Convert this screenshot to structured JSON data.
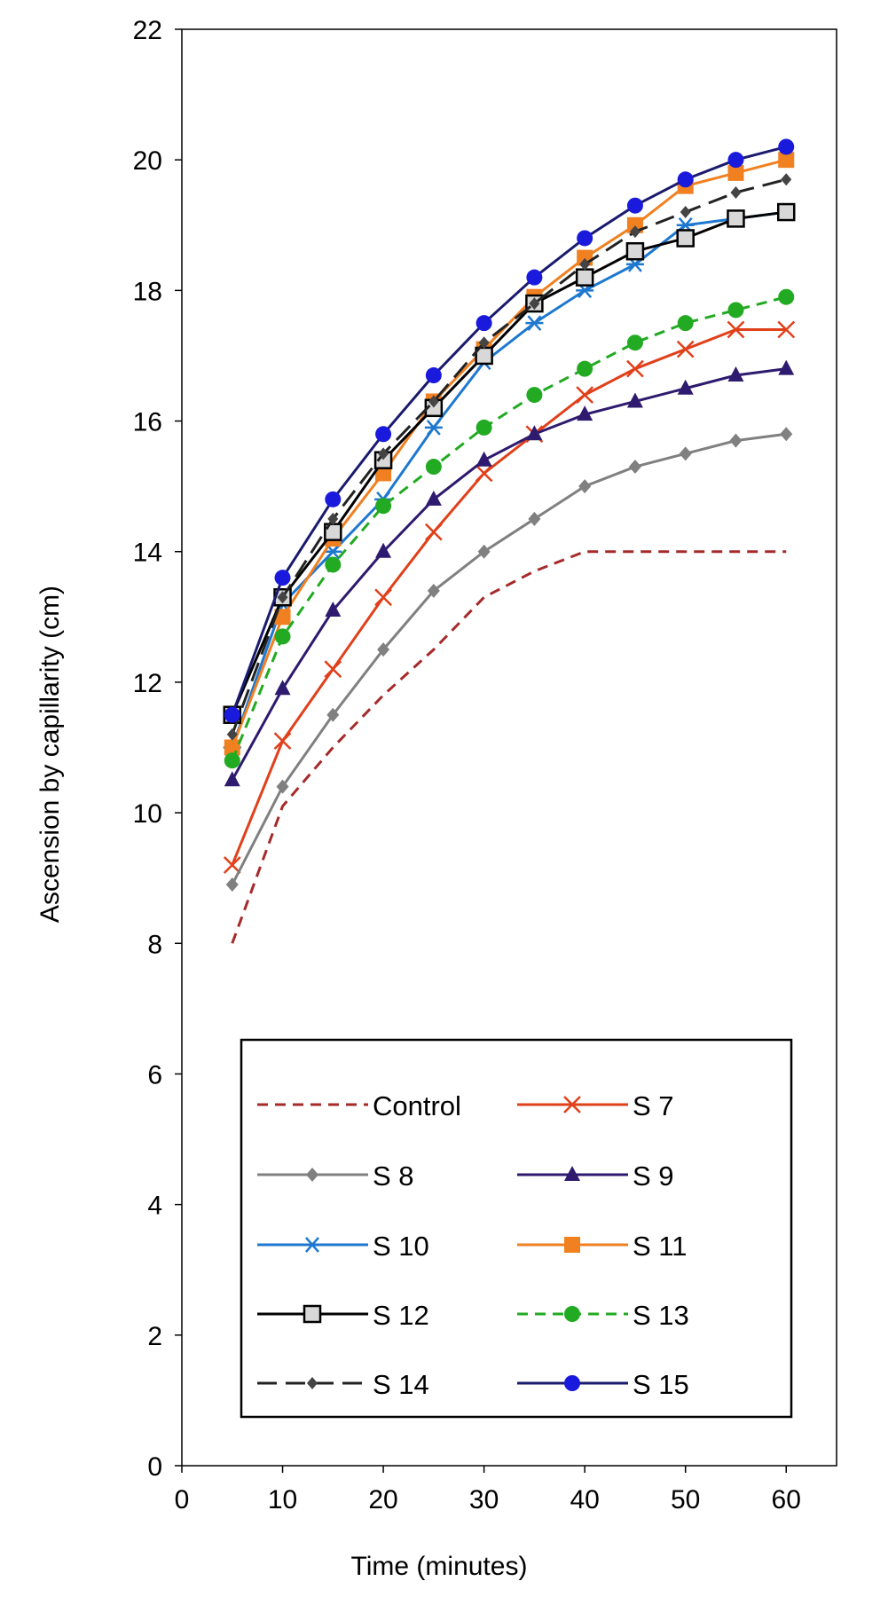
{
  "chart_data": {
    "type": "line",
    "title": "",
    "xlabel": "Time (minutes)",
    "ylabel": "Ascension by capillarity (cm)",
    "xlim": [
      0,
      65
    ],
    "ylim": [
      0,
      22
    ],
    "xticks": [
      0,
      10,
      20,
      30,
      40,
      50,
      60
    ],
    "yticks": [
      0,
      2,
      4,
      6,
      8,
      10,
      12,
      14,
      16,
      18,
      20,
      22
    ],
    "grid": false,
    "legend_position": "bottom-center",
    "x": [
      5,
      10,
      15,
      20,
      25,
      30,
      35,
      40,
      45,
      50,
      55,
      60
    ],
    "series": [
      {
        "name": "Control",
        "color": "#A52A2A",
        "dash": "dashed",
        "marker": "none",
        "values": [
          8.0,
          10.1,
          11.0,
          11.8,
          12.5,
          13.3,
          13.7,
          14.0,
          14.0,
          14.0,
          14.0,
          14.0
        ]
      },
      {
        "name": "S 7",
        "color": "#E0401A",
        "dash": "solid",
        "marker": "x",
        "values": [
          9.2,
          11.1,
          12.2,
          13.3,
          14.3,
          15.2,
          15.8,
          16.4,
          16.8,
          17.1,
          17.4,
          17.4
        ]
      },
      {
        "name": "S 8",
        "color": "#808080",
        "dash": "solid",
        "marker": "diamond",
        "values": [
          8.9,
          10.4,
          11.5,
          12.5,
          13.4,
          14.0,
          14.5,
          15.0,
          15.3,
          15.5,
          15.7,
          15.8
        ]
      },
      {
        "name": "S 9",
        "color": "#2E1A6E",
        "dash": "solid",
        "marker": "triangle",
        "values": [
          10.5,
          11.9,
          13.1,
          14.0,
          14.8,
          15.4,
          15.8,
          16.1,
          16.3,
          16.5,
          16.7,
          16.8
        ]
      },
      {
        "name": "S 10",
        "color": "#1E78D0",
        "dash": "solid",
        "marker": "asterisk",
        "values": [
          11.0,
          13.2,
          14.0,
          14.8,
          15.9,
          16.9,
          17.5,
          18.0,
          18.4,
          19.0,
          19.1,
          19.2
        ]
      },
      {
        "name": "S 11",
        "color": "#F08020",
        "dash": "solid",
        "marker": "square",
        "values": [
          11.0,
          13.0,
          14.2,
          15.2,
          16.3,
          17.1,
          17.9,
          18.5,
          19.0,
          19.6,
          19.8,
          20.0
        ]
      },
      {
        "name": "S 12",
        "color": "#000000",
        "dash": "solid",
        "marker": "square-open",
        "values": [
          11.5,
          13.3,
          14.3,
          15.4,
          16.2,
          17.0,
          17.8,
          18.2,
          18.6,
          18.8,
          19.1,
          19.2
        ]
      },
      {
        "name": "S 13",
        "color": "#22AA22",
        "dash": "dashed",
        "marker": "circle",
        "values": [
          10.8,
          12.7,
          13.8,
          14.7,
          15.3,
          15.9,
          16.4,
          16.8,
          17.2,
          17.5,
          17.7,
          17.9
        ]
      },
      {
        "name": "S 14",
        "color": "#222222",
        "dash": "longdash",
        "marker": "diamond-small",
        "values": [
          11.2,
          13.3,
          14.5,
          15.5,
          16.3,
          17.2,
          17.8,
          18.4,
          18.9,
          19.2,
          19.5,
          19.7
        ]
      },
      {
        "name": "S 15",
        "color": "#1A1ADC",
        "dash": "solid",
        "marker": "circle",
        "line_color": "#1A1A6E",
        "values": [
          11.5,
          13.6,
          14.8,
          15.8,
          16.7,
          17.5,
          18.2,
          18.8,
          19.3,
          19.7,
          20.0,
          20.2
        ]
      }
    ]
  }
}
